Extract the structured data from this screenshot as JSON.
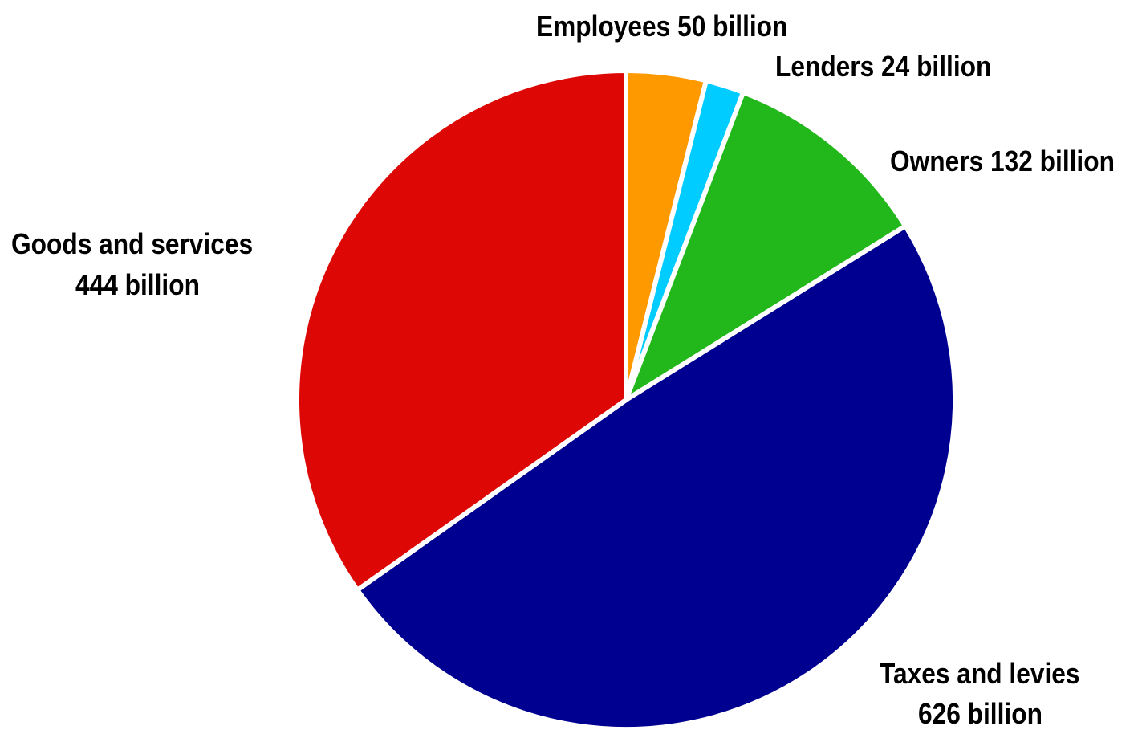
{
  "chart_data": {
    "type": "pie",
    "title": "",
    "slices": [
      {
        "name": "Employees",
        "value": 50,
        "label": "Employees 50 billion",
        "color": "#FF9900"
      },
      {
        "name": "Lenders",
        "value": 24,
        "label": "Lenders 24 billion",
        "color": "#00CCFF"
      },
      {
        "name": "Owners",
        "value": 132,
        "label": "Owners 132 billion",
        "color": "#22B81B"
      },
      {
        "name": "Taxes and levies",
        "value": 626,
        "label_lines": [
          "Taxes and levies",
          "626 billion"
        ],
        "color": "#000090"
      },
      {
        "name": "Goods and services",
        "value": 444,
        "label_lines": [
          "Goods and services",
          "444 billion"
        ],
        "color": "#DD0805"
      }
    ],
    "start": "12 o'clock",
    "direction": "clockwise"
  }
}
